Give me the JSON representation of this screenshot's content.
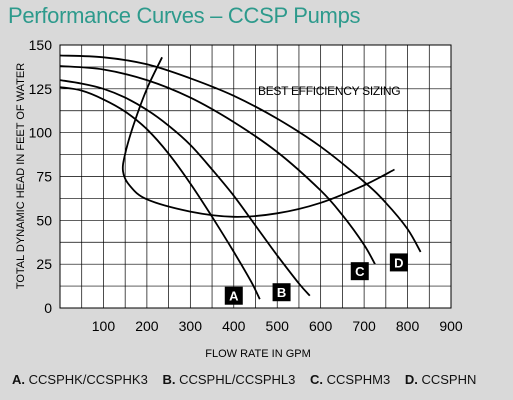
{
  "chart_data": {
    "type": "line",
    "title": "Performance Curves – CCSP Pumps",
    "xlabel": "FLOW RATE IN GPM",
    "ylabel": "TOTAL DYNAMIC HEAD IN FEET OF WATER",
    "xlim": [
      0,
      900
    ],
    "ylim": [
      0,
      150
    ],
    "x_ticks": [
      "100",
      "200",
      "300",
      "400",
      "500",
      "600",
      "700",
      "800",
      "900"
    ],
    "y_ticks": [
      "0",
      "25",
      "50",
      "75",
      "100",
      "125",
      "150"
    ],
    "grid": true,
    "annotation": "BEST EFFICIENCY SIZING",
    "series": [
      {
        "name": "A",
        "x": [
          0,
          50,
          100,
          150,
          200,
          250,
          300,
          350,
          400,
          440,
          460
        ],
        "y": [
          126,
          124,
          119,
          112,
          102,
          88,
          71,
          52,
          32,
          15,
          5
        ]
      },
      {
        "name": "B",
        "x": [
          0,
          50,
          100,
          150,
          200,
          250,
          300,
          350,
          400,
          450,
          500,
          550,
          575
        ],
        "y": [
          130,
          128,
          125,
          120,
          113,
          104,
          93,
          79,
          64,
          47,
          30,
          14,
          7
        ]
      },
      {
        "name": "C",
        "x": [
          0,
          100,
          200,
          300,
          400,
          500,
          600,
          650,
          700,
          725
        ],
        "y": [
          138,
          136,
          130,
          120,
          106,
          89,
          67,
          53,
          36,
          25
        ]
      },
      {
        "name": "D",
        "x": [
          0,
          100,
          200,
          300,
          400,
          500,
          600,
          700,
          750,
          800,
          830
        ],
        "y": [
          144,
          143,
          139,
          131,
          121,
          108,
          92,
          72,
          60,
          45,
          32
        ]
      },
      {
        "name": "BEST EFFICIENCY SIZING",
        "x": [
          235,
          200,
          170,
          150,
          145,
          160,
          200,
          300,
          400,
          500,
          600,
          700,
          770
        ],
        "y": [
          143,
          125,
          105,
          88,
          78,
          70,
          62,
          55,
          52,
          54,
          60,
          70,
          79
        ]
      }
    ],
    "curve_labels": [
      {
        "label": "A",
        "x": 400,
        "y": 7
      },
      {
        "label": "B",
        "x": 510,
        "y": 9
      },
      {
        "label": "C",
        "x": 690,
        "y": 21
      },
      {
        "label": "D",
        "x": 780,
        "y": 26
      }
    ]
  },
  "legend": [
    {
      "letter": "A.",
      "text": "CCSPHK/CCSPHK3"
    },
    {
      "letter": "B.",
      "text": "CCSPHL/CCSPHL3"
    },
    {
      "letter": "C.",
      "text": "CCSPHM3"
    },
    {
      "letter": "D.",
      "text": "CCSPHN"
    }
  ]
}
